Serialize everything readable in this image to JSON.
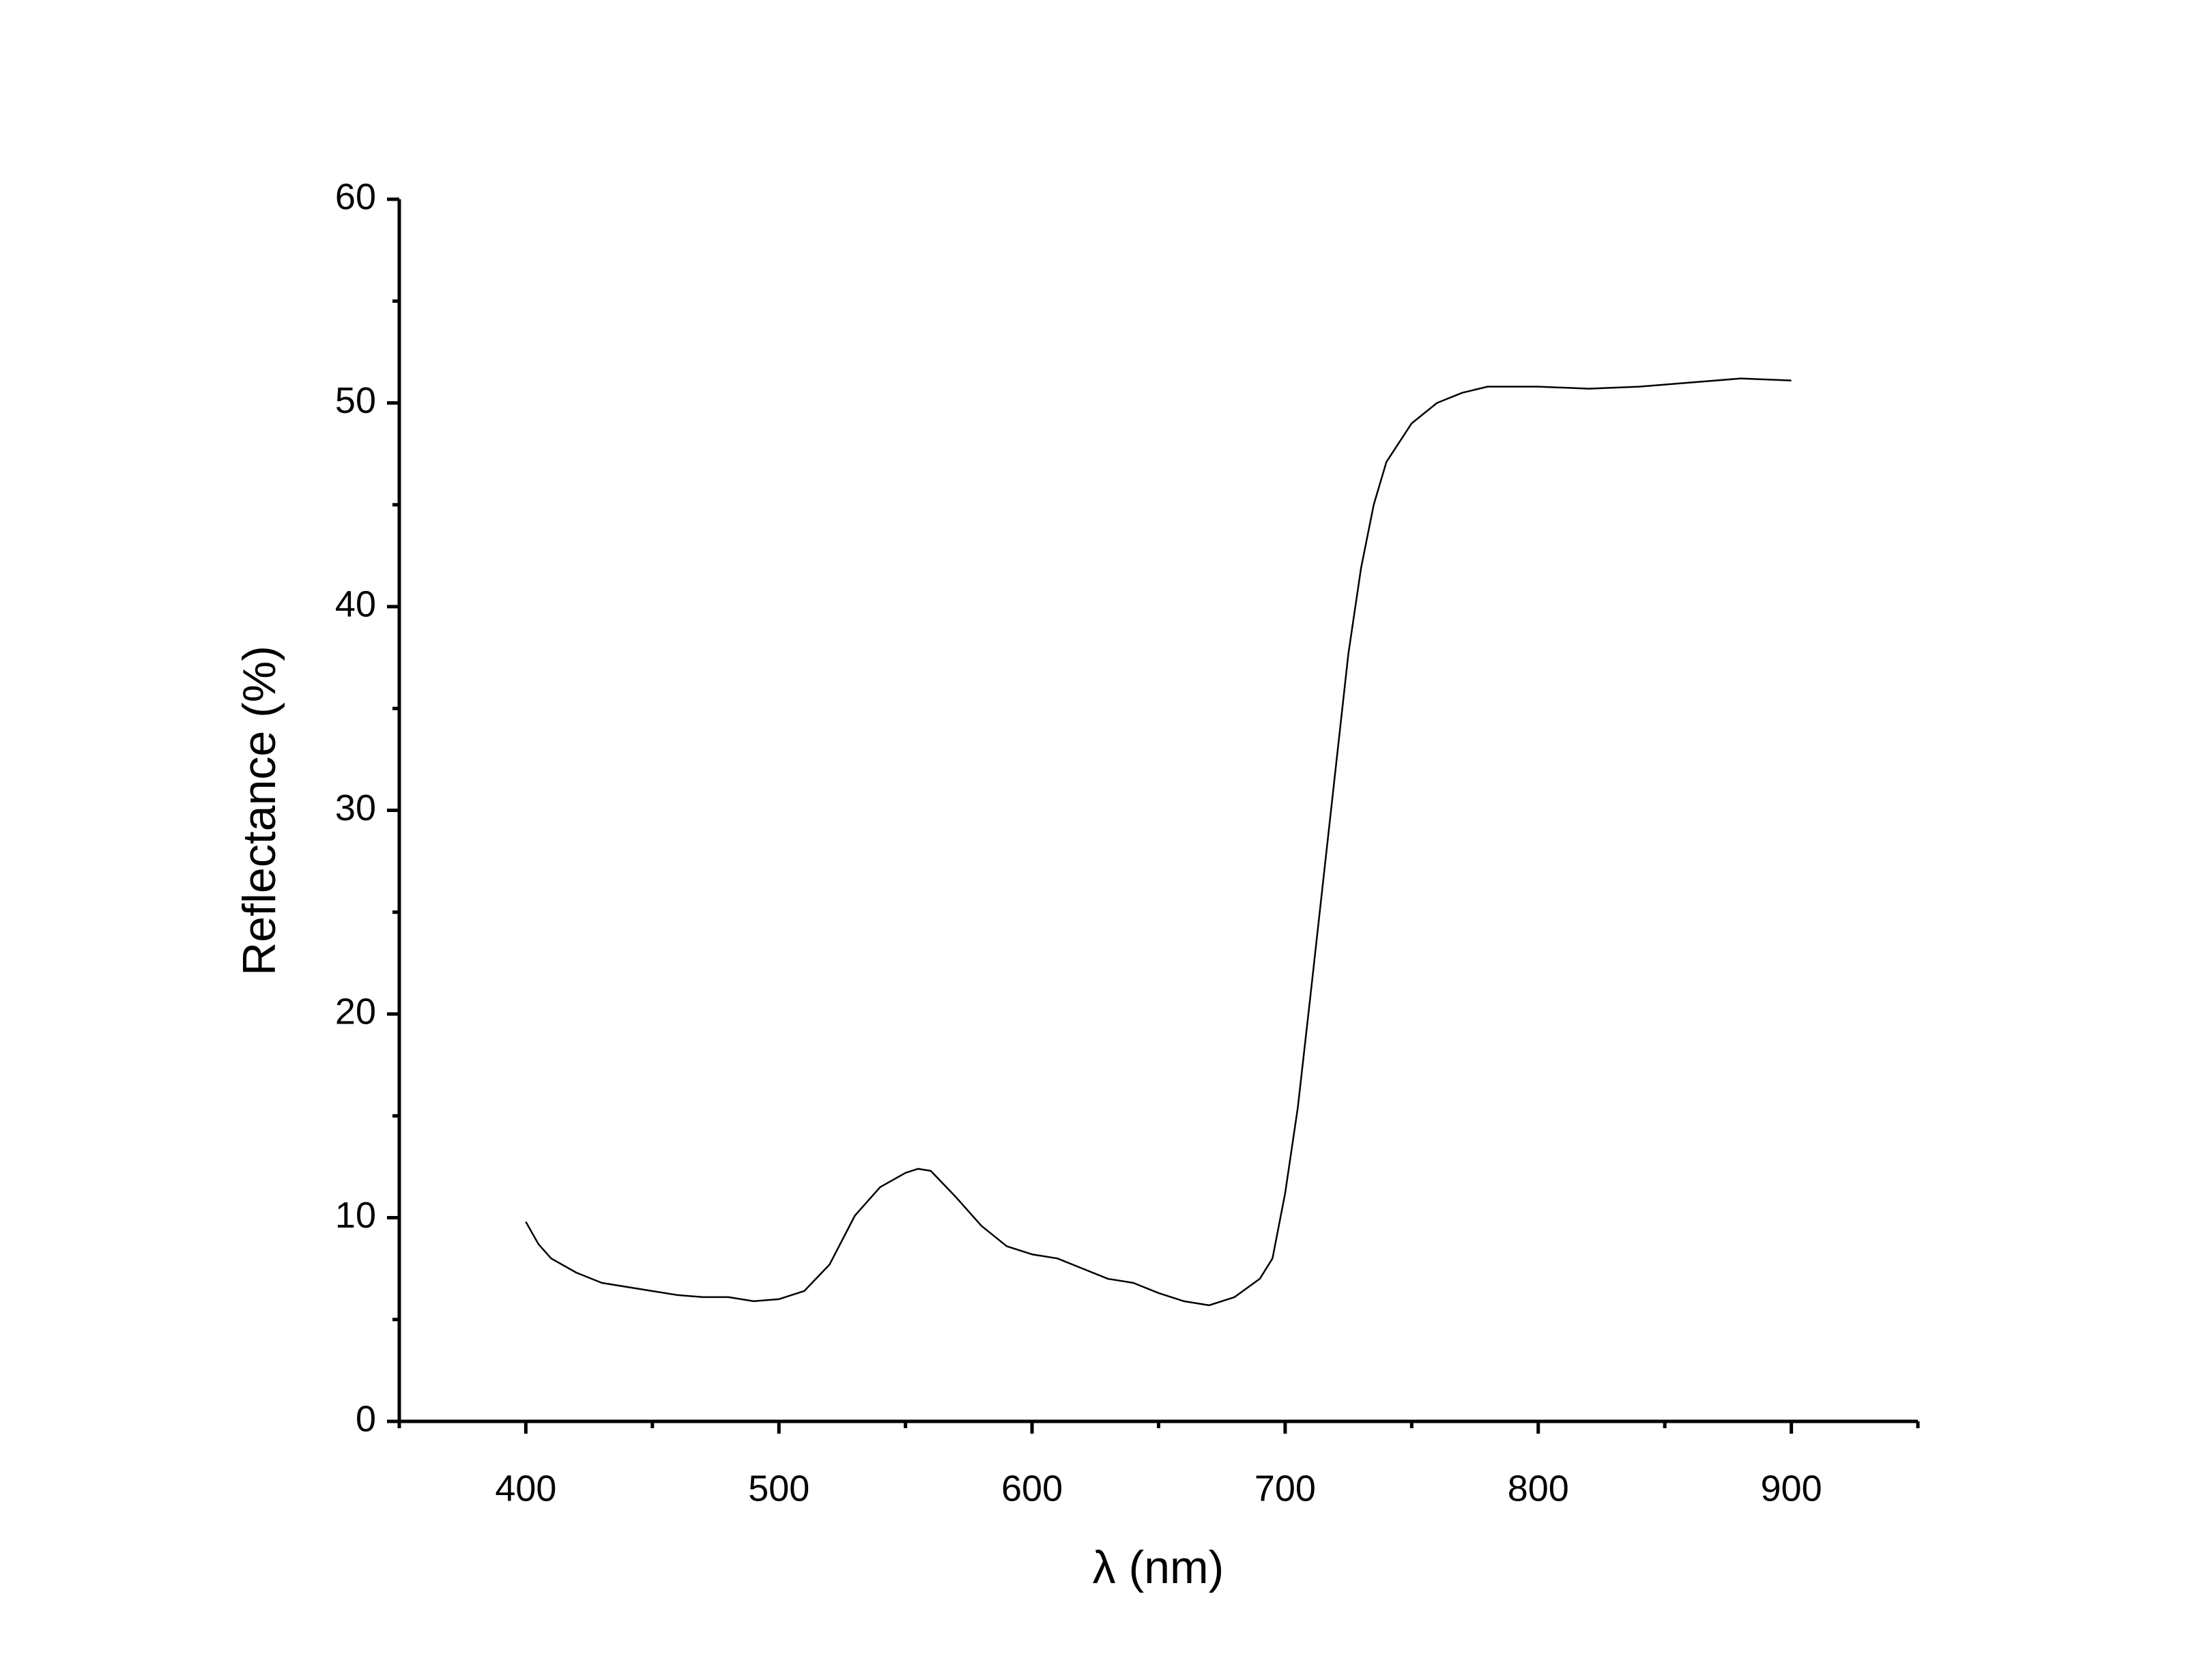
{
  "chart_data": {
    "type": "line",
    "x_label": "λ (nm)",
    "y_label": "Reflectance (%)",
    "x": [
      400,
      405,
      410,
      420,
      430,
      440,
      450,
      460,
      470,
      480,
      490,
      500,
      510,
      520,
      530,
      540,
      550,
      555,
      560,
      570,
      580,
      590,
      600,
      610,
      620,
      630,
      640,
      650,
      660,
      670,
      680,
      690,
      695,
      700,
      705,
      710,
      715,
      720,
      725,
      730,
      735,
      740,
      750,
      760,
      770,
      780,
      800,
      820,
      840,
      860,
      880,
      900
    ],
    "values": [
      9.8,
      8.7,
      8.0,
      7.3,
      6.8,
      6.6,
      6.4,
      6.2,
      6.1,
      6.1,
      5.9,
      6.0,
      6.4,
      7.7,
      10.1,
      11.5,
      12.2,
      12.4,
      12.3,
      11.0,
      9.6,
      8.6,
      8.2,
      8.0,
      7.5,
      7.0,
      6.8,
      6.3,
      5.9,
      5.7,
      6.1,
      7.0,
      8.0,
      11.2,
      15.4,
      20.9,
      26.5,
      32.1,
      37.7,
      41.9,
      45.0,
      47.1,
      49.0,
      50.0,
      50.5,
      50.8,
      50.8,
      50.7,
      50.8,
      51.0,
      51.2,
      51.1
    ],
    "color": "#000000",
    "xlim": [
      350,
      950
    ],
    "ylim": [
      0,
      60
    ],
    "xticks": [
      400,
      500,
      600,
      700,
      800,
      900
    ],
    "yticks": [
      0,
      10,
      20,
      30,
      40,
      50,
      60
    ],
    "xminorticks": [
      350,
      450,
      550,
      650,
      750,
      850,
      950
    ],
    "yminorticks": [
      5,
      15,
      25,
      35,
      45,
      55
    ],
    "grid": false
  }
}
